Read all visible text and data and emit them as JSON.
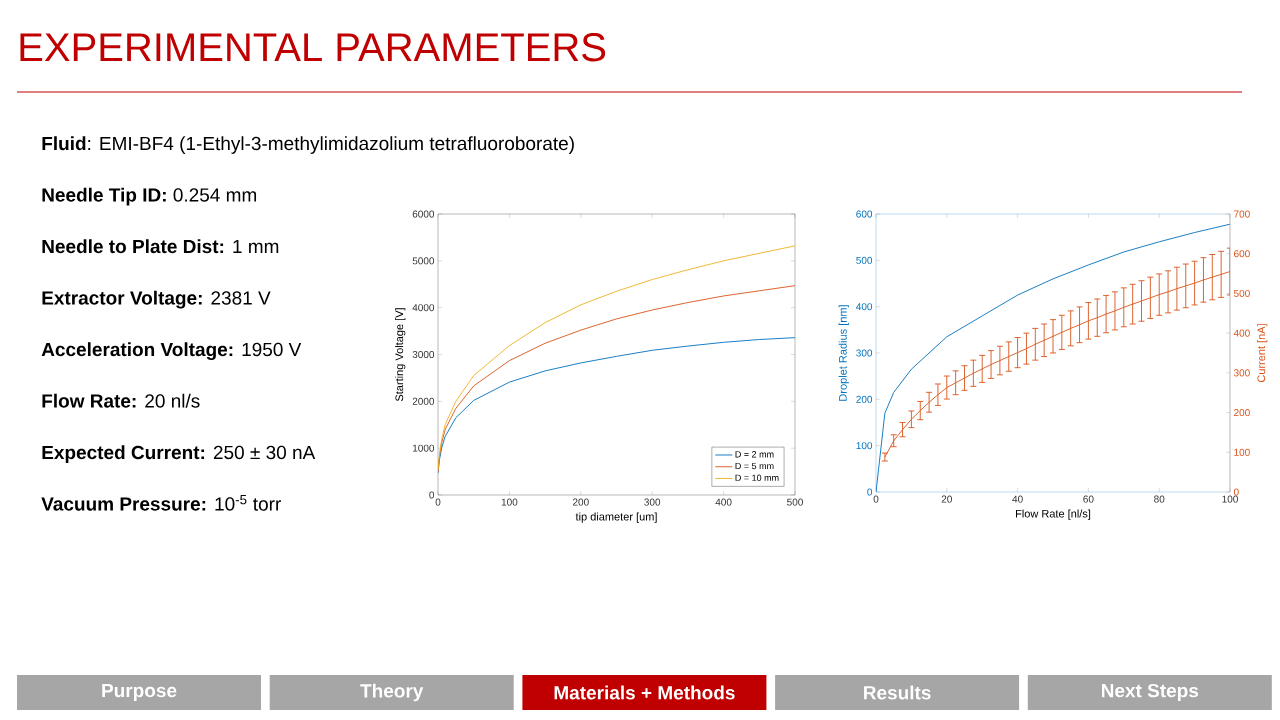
{
  "chart_data": [
    {
      "type": "other",
      "title": "EXPERIMENTAL PARAMETERS",
      "color": "#c00000",
      "annotations": [
        "**Fluid**: EMI-BF4 (1-Ethyl-3-methylimidazolium  tetrafluoroborate)",
        "**Needle Tip ID:**  0.254 mm",
        "**Needle to Plate Dist:** 1 mm",
        "**Extractor Voltage:** 2381 V",
        "**Acceleration Voltage:** 1950 V",
        "**Flow Rate:**  20 nl/s",
        "**Expected Current:**  250 ± 30  nA",
        "**Vacuum Pressure:** 10$^{-5}$ torr"
      ],
      "categories": [
        "Purpose",
        "Theory",
        "Materials + Methods",
        "Results",
        "Next Steps"
      ],
      "colors": [
        "#a6a6a6",
        "#a6a6a6",
        "#c00000",
        "#a6a6a6",
        "#a6a6a6"
      ]
    },
    {
      "type": "line",
      "xlabel": "tip diameter [um]",
      "ylabel": "Starting Voltage [V]",
      "x": [
        0,
        2,
        5,
        10,
        25,
        50,
        100,
        150,
        200,
        250,
        300,
        350,
        400,
        450,
        500
      ],
      "series": [
        {
          "name": "D = 2 mm",
          "color": "#0072bd",
          "values": [
            470,
            750,
            1000,
            1250,
            1650,
            2020,
            2410,
            2650,
            2820,
            2960,
            3090,
            3180,
            3260,
            3320,
            3360
          ]
        },
        {
          "name": "D = 5 mm",
          "color": "#d95319",
          "values": [
            500,
            820,
            1100,
            1400,
            1850,
            2330,
            2870,
            3240,
            3520,
            3760,
            3950,
            4110,
            4250,
            4360,
            4470
          ]
        },
        {
          "name": "D = 10 mm",
          "color": "#edb120",
          "values": [
            520,
            870,
            1180,
            1500,
            2000,
            2550,
            3190,
            3680,
            4060,
            4350,
            4600,
            4810,
            5000,
            5160,
            5320
          ]
        }
      ],
      "xlim": [
        0,
        500
      ],
      "ylim": [
        0,
        6000
      ],
      "xticks": [
        0,
        100,
        200,
        300,
        400,
        500
      ],
      "yticks": [
        0,
        1000,
        2000,
        3000,
        4000,
        5000,
        6000
      ],
      "legend": "bottom right"
    },
    {
      "type": "line",
      "xlabel": "Flow Rate [nl/s]",
      "ylabel": "Droplet Radius [nm]",
      "y2label": "Current [nA]",
      "series": [
        {
          "color": "#0072bd",
          "x": [
            0,
            2.5,
            5,
            10,
            20,
            30,
            40,
            50,
            60,
            70,
            80,
            90,
            100
          ],
          "values": [
            0,
            170,
            215,
            265,
            335,
            380,
            425,
            460,
            490,
            518,
            540,
            560,
            578
          ]
        },
        {
          "color": "#d95319",
          "axis": "y2",
          "x": [
            2.5,
            5,
            7.5,
            10,
            12.5,
            15,
            17.5,
            20,
            22.5,
            25,
            27.5,
            30,
            32.5,
            35,
            37.5,
            40,
            42.5,
            45,
            47.5,
            50,
            52.5,
            55,
            57.5,
            60,
            62.5,
            65,
            67.5,
            70,
            72.5,
            75,
            77.5,
            80,
            82.5,
            85,
            87.5,
            90,
            92.5,
            95,
            97.5,
            100
          ],
          "values": [
            88,
            129,
            157,
            183,
            205,
            226,
            245,
            263,
            275,
            287,
            299,
            310,
            321,
            331,
            341,
            351,
            361,
            372,
            382,
            392,
            402,
            412,
            421,
            431,
            439,
            448,
            456,
            465,
            473,
            481,
            489,
            497,
            504,
            512,
            519,
            526,
            534,
            541,
            548,
            555
          ],
          "errors": [
            10,
            15,
            18,
            21,
            23,
            25,
            27,
            29,
            30,
            31,
            33,
            34,
            35,
            36,
            37,
            38,
            39,
            40,
            41,
            42,
            43,
            44,
            45,
            46,
            47,
            47,
            48,
            49,
            50,
            51,
            52,
            52,
            53,
            54,
            55,
            55,
            56,
            57,
            58,
            59
          ]
        }
      ],
      "xlim": [
        0,
        100
      ],
      "ylim": [
        0,
        600
      ],
      "y2lim": [
        0,
        700
      ],
      "xticks": [
        0,
        20,
        40,
        60,
        80,
        100
      ],
      "yticks": [
        0,
        100,
        200,
        300,
        400,
        500,
        600
      ],
      "y2ticks": [
        0,
        100,
        200,
        300,
        400,
        500,
        600,
        700
      ]
    }
  ]
}
